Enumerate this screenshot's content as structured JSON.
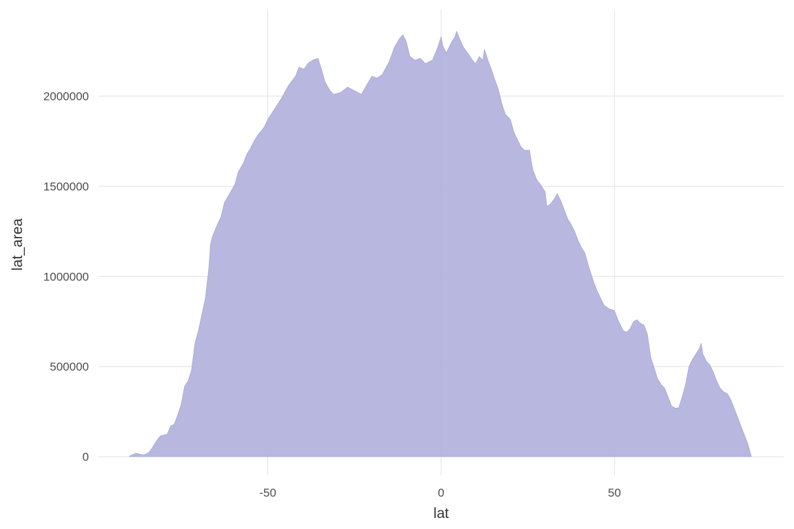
{
  "chart_data": {
    "type": "area",
    "xlabel": "lat",
    "ylabel": "lat_area",
    "xlim": [
      -89,
      90
    ],
    "ylim": [
      -100000,
      2400000
    ],
    "x_ticks": [
      -50,
      0,
      50
    ],
    "x_tick_labels": [
      "-50",
      "0",
      "50"
    ],
    "y_ticks": [
      0,
      500000,
      1000000,
      1500000,
      2000000
    ],
    "y_tick_labels": [
      "0",
      "500000",
      "1000000",
      "1500000",
      "2000000"
    ],
    "grid": true,
    "legend": "none",
    "fill_color": "#b3b3de",
    "edge_color": "#9f9fd0",
    "points": [
      [
        -89.9,
        0
      ],
      [
        -89.8,
        5000
      ],
      [
        -88,
        20000
      ],
      [
        -86,
        10000
      ],
      [
        -85,
        15000
      ],
      [
        -84,
        30000
      ],
      [
        -83,
        60000
      ],
      [
        -82,
        90000
      ],
      [
        -81,
        115000
      ],
      [
        -79,
        125000
      ],
      [
        -78,
        170000
      ],
      [
        -77,
        180000
      ],
      [
        -76,
        230000
      ],
      [
        -75,
        290000
      ],
      [
        -74,
        390000
      ],
      [
        -73,
        420000
      ],
      [
        -72,
        480000
      ],
      [
        -71,
        630000
      ],
      [
        -70,
        700000
      ],
      [
        -69,
        790000
      ],
      [
        -68,
        880000
      ],
      [
        -67,
        1050000
      ],
      [
        -66.5,
        1180000
      ],
      [
        -66,
        1220000
      ],
      [
        -64.5,
        1290000
      ],
      [
        -63.5,
        1330000
      ],
      [
        -62.5,
        1410000
      ],
      [
        -61,
        1460000
      ],
      [
        -59.5,
        1510000
      ],
      [
        -58.5,
        1580000
      ],
      [
        -57,
        1630000
      ],
      [
        -56,
        1680000
      ],
      [
        -55,
        1710000
      ],
      [
        -54,
        1750000
      ],
      [
        -53,
        1780000
      ],
      [
        -51,
        1830000
      ],
      [
        -50,
        1870000
      ],
      [
        -48,
        1930000
      ],
      [
        -46,
        1990000
      ],
      [
        -44,
        2060000
      ],
      [
        -42,
        2110000
      ],
      [
        -41,
        2160000
      ],
      [
        -39.5,
        2150000
      ],
      [
        -38.5,
        2180000
      ],
      [
        -37,
        2200000
      ],
      [
        -35.5,
        2210000
      ],
      [
        -34.5,
        2150000
      ],
      [
        -33.5,
        2080000
      ],
      [
        -32,
        2030000
      ],
      [
        -31,
        2010000
      ],
      [
        -29,
        2020000
      ],
      [
        -27,
        2050000
      ],
      [
        -25,
        2030000
      ],
      [
        -23,
        2010000
      ],
      [
        -21.5,
        2060000
      ],
      [
        -20,
        2110000
      ],
      [
        -18.5,
        2100000
      ],
      [
        -17,
        2120000
      ],
      [
        -15,
        2190000
      ],
      [
        -13.5,
        2270000
      ],
      [
        -12,
        2320000
      ],
      [
        -11,
        2340000
      ],
      [
        -10,
        2300000
      ],
      [
        -9,
        2220000
      ],
      [
        -7.5,
        2200000
      ],
      [
        -6,
        2210000
      ],
      [
        -4.5,
        2180000
      ],
      [
        -2.5,
        2200000
      ],
      [
        -1,
        2270000
      ],
      [
        0,
        2330000
      ],
      [
        0.5,
        2280000
      ],
      [
        1.5,
        2240000
      ],
      [
        3,
        2300000
      ],
      [
        4,
        2330000
      ],
      [
        4.5,
        2360000
      ],
      [
        5.5,
        2310000
      ],
      [
        6.5,
        2270000
      ],
      [
        8,
        2230000
      ],
      [
        9,
        2200000
      ],
      [
        10,
        2180000
      ],
      [
        11,
        2220000
      ],
      [
        12,
        2200000
      ],
      [
        12.5,
        2260000
      ],
      [
        13.5,
        2200000
      ],
      [
        14.5,
        2150000
      ],
      [
        15.5,
        2090000
      ],
      [
        16.5,
        2040000
      ],
      [
        17.5,
        1960000
      ],
      [
        18.5,
        1900000
      ],
      [
        20,
        1870000
      ],
      [
        21,
        1800000
      ],
      [
        22,
        1760000
      ],
      [
        23,
        1720000
      ],
      [
        24,
        1700000
      ],
      [
        25.5,
        1700000
      ],
      [
        26,
        1640000
      ],
      [
        26.5,
        1590000
      ],
      [
        27.5,
        1540000
      ],
      [
        29,
        1500000
      ],
      [
        30,
        1470000
      ],
      [
        30.5,
        1390000
      ],
      [
        31.5,
        1400000
      ],
      [
        33,
        1440000
      ],
      [
        33.5,
        1460000
      ],
      [
        34.5,
        1420000
      ],
      [
        35.5,
        1370000
      ],
      [
        36.5,
        1320000
      ],
      [
        37.5,
        1290000
      ],
      [
        38.5,
        1250000
      ],
      [
        39.5,
        1200000
      ],
      [
        40.5,
        1160000
      ],
      [
        41.5,
        1130000
      ],
      [
        42.5,
        1060000
      ],
      [
        44,
        970000
      ],
      [
        45,
        920000
      ],
      [
        46,
        880000
      ],
      [
        47,
        840000
      ],
      [
        48.5,
        820000
      ],
      [
        50,
        810000
      ],
      [
        51,
        760000
      ],
      [
        52.5,
        700000
      ],
      [
        53.5,
        690000
      ],
      [
        54.5,
        710000
      ],
      [
        55.5,
        750000
      ],
      [
        56.5,
        760000
      ],
      [
        57.5,
        740000
      ],
      [
        58.5,
        730000
      ],
      [
        59.5,
        680000
      ],
      [
        60.5,
        550000
      ],
      [
        61.5,
        490000
      ],
      [
        62.5,
        430000
      ],
      [
        63.5,
        400000
      ],
      [
        64.5,
        380000
      ],
      [
        65.5,
        330000
      ],
      [
        66.5,
        280000
      ],
      [
        67.5,
        270000
      ],
      [
        68.5,
        270000
      ],
      [
        69.5,
        330000
      ],
      [
        70.5,
        400000
      ],
      [
        71,
        450000
      ],
      [
        71.5,
        500000
      ],
      [
        72.5,
        540000
      ],
      [
        73.5,
        570000
      ],
      [
        74.5,
        600000
      ],
      [
        75,
        630000
      ],
      [
        75.5,
        570000
      ],
      [
        76.5,
        530000
      ],
      [
        77.5,
        510000
      ],
      [
        78.5,
        470000
      ],
      [
        79.5,
        420000
      ],
      [
        80.5,
        380000
      ],
      [
        81.5,
        360000
      ],
      [
        82.5,
        350000
      ],
      [
        83.5,
        320000
      ],
      [
        84.5,
        270000
      ],
      [
        85.5,
        220000
      ],
      [
        86.5,
        170000
      ],
      [
        87.5,
        120000
      ],
      [
        88.5,
        70000
      ],
      [
        89.5,
        0
      ]
    ]
  }
}
